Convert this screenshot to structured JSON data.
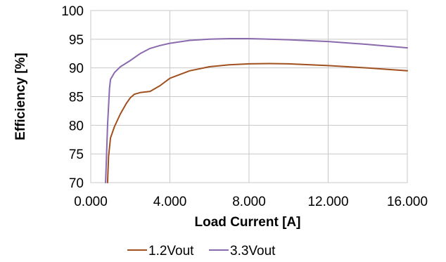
{
  "chart_data": {
    "type": "line",
    "xlabel": "Load Current [A]",
    "ylabel": "Efficiency [%]",
    "xlim": [
      0,
      16
    ],
    "ylim": [
      70,
      100
    ],
    "x_ticks": [
      "0.000",
      "4.000",
      "8.000",
      "12.000",
      "16.000"
    ],
    "y_ticks": [
      "70",
      "75",
      "80",
      "85",
      "90",
      "95",
      "100"
    ],
    "grid": true,
    "legend_position": "bottom",
    "series": [
      {
        "name": "1.2Vout",
        "color": "#a0501e",
        "x": [
          0.85,
          0.9,
          1.0,
          1.2,
          1.5,
          1.8,
          2.0,
          2.2,
          2.5,
          3.0,
          3.5,
          4.0,
          5.0,
          6.0,
          7.0,
          8.0,
          9.0,
          10.0,
          12.0,
          14.0,
          16.0
        ],
        "y": [
          70.0,
          74.5,
          77.8,
          79.8,
          82.0,
          83.8,
          84.8,
          85.4,
          85.7,
          85.9,
          86.9,
          88.2,
          89.5,
          90.2,
          90.55,
          90.7,
          90.75,
          90.7,
          90.4,
          90.0,
          89.5
        ]
      },
      {
        "name": "3.3Vout",
        "color": "#8a6aae",
        "x": [
          0.75,
          0.85,
          0.95,
          1.0,
          1.2,
          1.5,
          2.0,
          2.5,
          3.0,
          3.5,
          4.0,
          5.0,
          6.0,
          7.0,
          7.5,
          8.0,
          10.0,
          12.0,
          14.0,
          16.0
        ],
        "y": [
          70.0,
          80.0,
          86.5,
          88.0,
          89.2,
          90.2,
          91.3,
          92.5,
          93.4,
          93.9,
          94.3,
          94.8,
          95.0,
          95.1,
          95.1,
          95.1,
          94.9,
          94.6,
          94.1,
          93.5
        ]
      }
    ]
  }
}
